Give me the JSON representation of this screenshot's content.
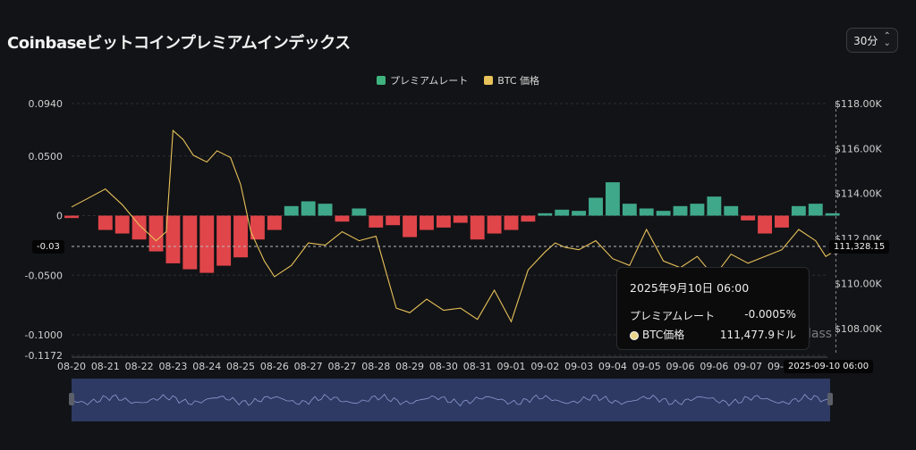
{
  "page": {
    "title": "Coinbaseビットコインプレミアムインデックス",
    "interval_label": "30分",
    "watermark": "lass"
  },
  "legend": {
    "premium_label": "プレミアムレート",
    "btc_label": "BTC 価格"
  },
  "colors": {
    "positive": "#3fa88b",
    "negative": "#e0454a",
    "btc": "#e8c25a",
    "navigator": "#2e3a64"
  },
  "crosshair": {
    "y_tag": "-0.03",
    "right_tag": "111,328.15",
    "x_tag": "2025-09-10 06:00"
  },
  "tooltip": {
    "title": "2025年9月10日 06:00",
    "premium_label": "プレミアムレート",
    "premium_value": "-0.0005%",
    "btc_label": "BTC価格",
    "btc_value": "111,477.9ドル"
  },
  "chart_data": {
    "type": "bar",
    "x_tick_labels": [
      "08-20",
      "08-21",
      "08-22",
      "08-23",
      "08-24",
      "08-25",
      "08-26",
      "08-27",
      "08-27",
      "08-28",
      "08-29",
      "08-30",
      "08-31",
      "09-01",
      "09-02",
      "09-03",
      "09-04",
      "09-05",
      "09-06",
      "09-06",
      "09-07",
      "09-08",
      "09"
    ],
    "y_left_ticks": [
      "0.0940",
      "0.0500",
      "0",
      "-0.0500",
      "-0.1000",
      "-0.1172"
    ],
    "y_left_values": [
      0.094,
      0.05,
      0,
      -0.05,
      -0.1,
      -0.1172
    ],
    "y_left_range": [
      -0.1172,
      0.094
    ],
    "y_right_ticks": [
      "$118.00K",
      "$116.00K",
      "$114.00K",
      "$112.00K",
      "$110.00K",
      "$108.00K"
    ],
    "y_right_values": [
      118000,
      116000,
      114000,
      112000,
      110000,
      108000
    ],
    "y_right_range": [
      106800,
      118000
    ],
    "series": [
      {
        "name": "プレミアムレート",
        "kind": "bar",
        "x": [
          0,
          1,
          1.5,
          2,
          2.5,
          3,
          3.5,
          4,
          4.5,
          5,
          5.5,
          6,
          6.5,
          7,
          7.5,
          8,
          8.5,
          9,
          9.5,
          10,
          10.5,
          11,
          11.5,
          12,
          12.5,
          13,
          13.5,
          14,
          14.5,
          15,
          15.5,
          16,
          16.5,
          17,
          17.5,
          18,
          18.5,
          19,
          19.5,
          20,
          20.5,
          21,
          21.5,
          22,
          22.5
        ],
        "values": [
          -0.002,
          -0.012,
          -0.015,
          -0.02,
          -0.03,
          -0.04,
          -0.045,
          -0.048,
          -0.042,
          -0.035,
          -0.02,
          -0.012,
          0.008,
          0.012,
          0.01,
          -0.005,
          0.006,
          -0.01,
          -0.008,
          -0.018,
          -0.012,
          -0.01,
          -0.006,
          -0.02,
          -0.015,
          -0.012,
          -0.005,
          0.002,
          0.005,
          0.004,
          0.015,
          0.028,
          0.01,
          0.006,
          0.004,
          0.008,
          0.01,
          0.016,
          0.008,
          -0.004,
          -0.015,
          -0.01,
          0.008,
          0.01,
          0.002
        ]
      },
      {
        "name": "BTC 価格",
        "kind": "line",
        "x": [
          0,
          0.5,
          1,
          1.5,
          2,
          2.5,
          2.8,
          3,
          3.3,
          3.6,
          4,
          4.3,
          4.7,
          5,
          5.3,
          5.7,
          6,
          6.5,
          7,
          7.5,
          8,
          8.5,
          9,
          9.3,
          9.6,
          10,
          10.5,
          11,
          11.5,
          12,
          12.5,
          13,
          13.5,
          14,
          14.3,
          14.6,
          15,
          15.5,
          16,
          16.5,
          17,
          17.5,
          18,
          18.5,
          19,
          19.5,
          20,
          20.5,
          21,
          21.5,
          22,
          22.3,
          22.6
        ],
        "values": [
          113400,
          113800,
          114200,
          113500,
          112600,
          111900,
          112300,
          116800,
          116400,
          115700,
          115400,
          115900,
          115600,
          114400,
          112300,
          111000,
          110300,
          110800,
          111800,
          111700,
          112300,
          111900,
          112100,
          110500,
          108900,
          108700,
          109300,
          108800,
          108900,
          108400,
          109700,
          108300,
          110600,
          111400,
          111800,
          111600,
          111500,
          111900,
          111100,
          110800,
          112400,
          111000,
          110700,
          111200,
          110300,
          111300,
          110900,
          111200,
          111500,
          112400,
          111900,
          111200,
          111480
        ]
      }
    ]
  }
}
